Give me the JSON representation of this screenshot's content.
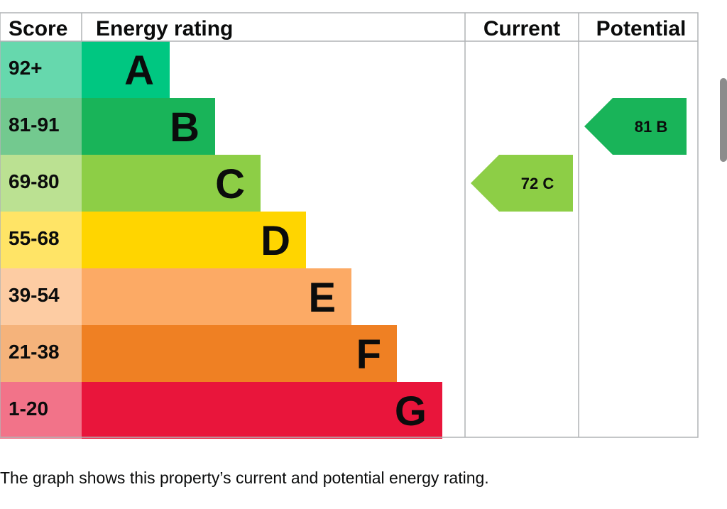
{
  "chart_data": {
    "type": "epc_rating",
    "headers": {
      "score": "Score",
      "rating": "Energy rating",
      "current": "Current",
      "potential": "Potential"
    },
    "bands": [
      {
        "letter": "A",
        "score": "92+",
        "color": "#00c781",
        "score_bg": "#66d8ad"
      },
      {
        "letter": "B",
        "score": "81-91",
        "color": "#19b459",
        "score_bg": "#73c98f"
      },
      {
        "letter": "C",
        "score": "69-80",
        "color": "#8dce46",
        "score_bg": "#bbe192"
      },
      {
        "letter": "D",
        "score": "55-68",
        "color": "#ffd500",
        "score_bg": "#ffe466"
      },
      {
        "letter": "E",
        "score": "39-54",
        "color": "#fcaa65",
        "score_bg": "#fdcca3"
      },
      {
        "letter": "F",
        "score": "21-38",
        "color": "#ef8023",
        "score_bg": "#f5b37b"
      },
      {
        "letter": "G",
        "score": "1-20",
        "color": "#e9153b",
        "score_bg": "#f27389"
      }
    ],
    "current": {
      "value": 72,
      "band": "C",
      "label": "72  C",
      "color": "#8dce46"
    },
    "potential": {
      "value": 81,
      "band": "B",
      "label": "81  B",
      "color": "#19b459"
    }
  },
  "caption": "The graph shows this property’s current and potential energy rating."
}
